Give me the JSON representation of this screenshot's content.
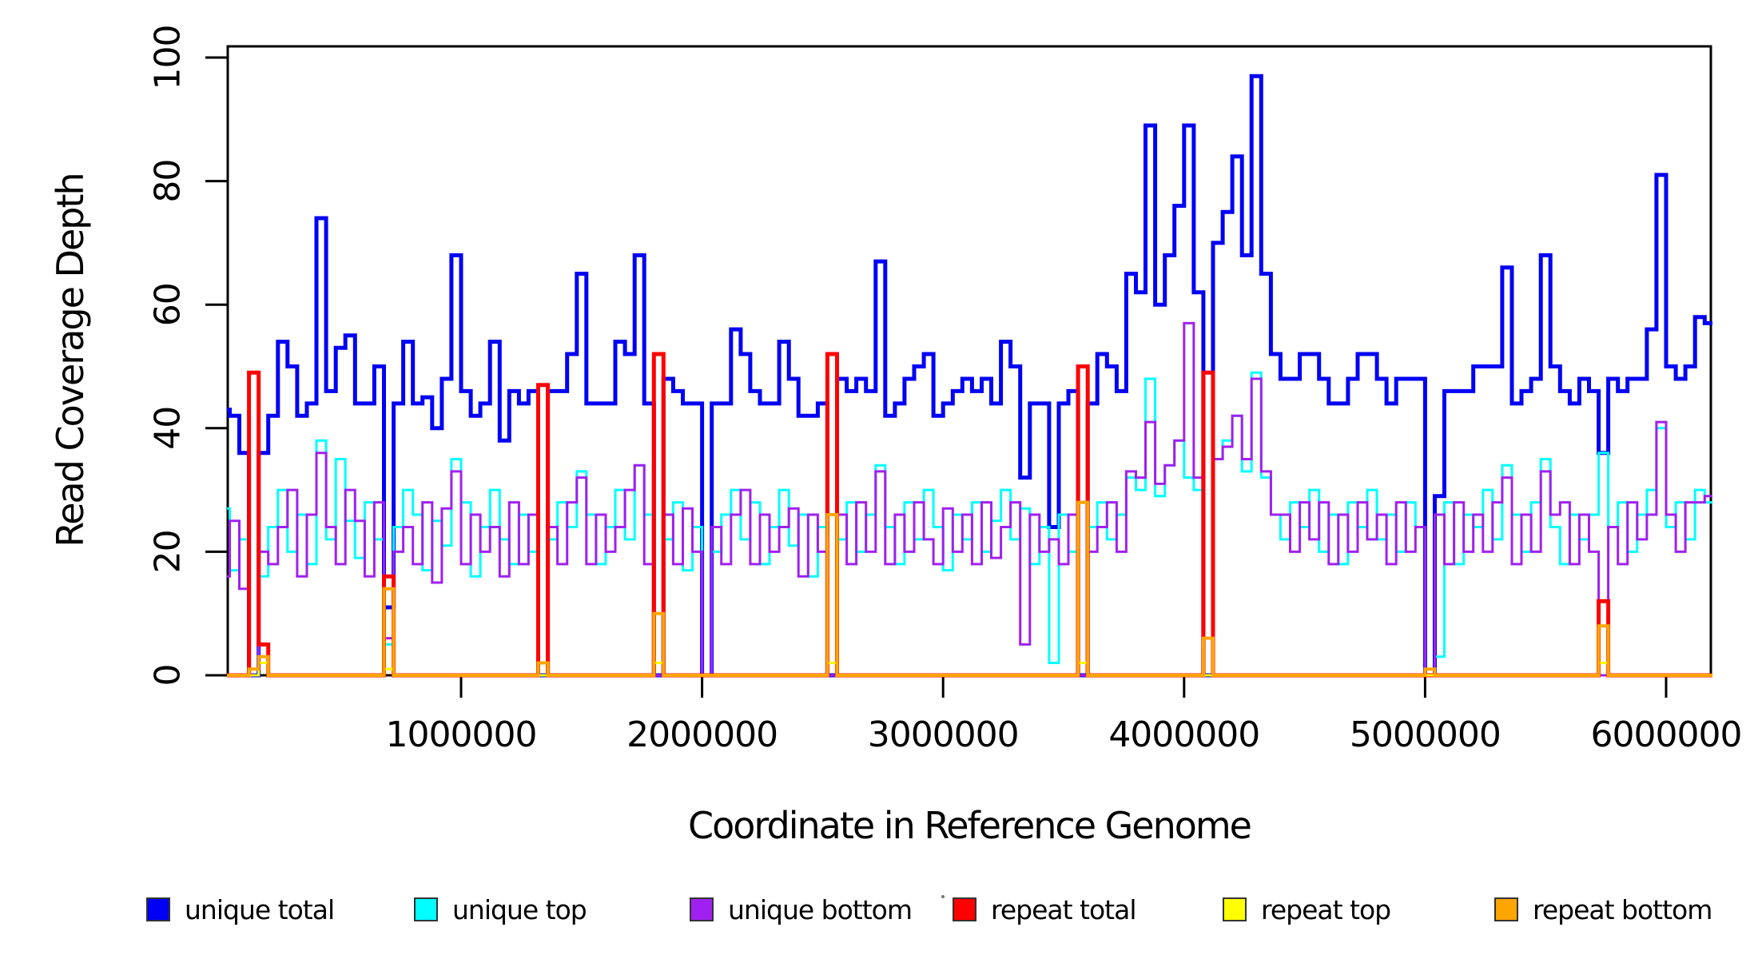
{
  "colors": {
    "unique_total": "#0000F5",
    "unique_top": "#00FFFF",
    "unique_bottom": "#A020F0",
    "repeat_total": "#FF0000",
    "repeat_top": "#FFFF00",
    "repeat_bottom": "#FFA500",
    "axis": "#000000"
  },
  "labels": {
    "xlab": "Coordinate in Reference Genome",
    "ylab": "Read Coverage Depth"
  },
  "legend": {
    "items": [
      {
        "label": "unique total",
        "color_key": "unique_total"
      },
      {
        "label": "unique top",
        "color_key": "unique_top"
      },
      {
        "label": "unique bottom",
        "color_key": "unique_bottom"
      },
      {
        "label": "repeat total",
        "color_key": "repeat_total"
      },
      {
        "label": "repeat top",
        "color_key": "repeat_top"
      },
      {
        "label": "repeat bottom",
        "color_key": "repeat_bottom"
      }
    ]
  },
  "chart_data": {
    "type": "line",
    "step": true,
    "title": "",
    "xlabel": "Coordinate in Reference Genome",
    "ylabel": "Read Coverage Depth",
    "xlim": [
      0,
      6200000
    ],
    "ylim": [
      0,
      100
    ],
    "grid": false,
    "legend_position": "bottom",
    "x_ticks": [
      1000000,
      2000000,
      3000000,
      4000000,
      5000000,
      6000000
    ],
    "x_tick_labels": [
      "1000000",
      "2000000",
      "3000000",
      "4000000",
      "5000000",
      "6000000"
    ],
    "y_ticks": [
      0,
      20,
      40,
      60,
      80,
      100
    ],
    "y_tick_labels": [
      "0",
      "20",
      "40",
      "60",
      "80",
      "100"
    ],
    "bin_size": 40000,
    "x_start": 0,
    "series": [
      {
        "name": "unique total",
        "color_key": "unique_total",
        "line_width": 5,
        "values": [
          43,
          42,
          36,
          0,
          36,
          42,
          54,
          50,
          42,
          44,
          74,
          46,
          53,
          55,
          44,
          44,
          50,
          11,
          44,
          54,
          44,
          45,
          40,
          48,
          68,
          46,
          42,
          44,
          54,
          38,
          46,
          44,
          46,
          0,
          46,
          46,
          52,
          65,
          44,
          44,
          44,
          54,
          52,
          68,
          44,
          0,
          48,
          46,
          44,
          44,
          0,
          44,
          44,
          56,
          52,
          46,
          44,
          44,
          54,
          48,
          42,
          42,
          44,
          0,
          48,
          46,
          48,
          46,
          67,
          42,
          44,
          48,
          50,
          52,
          42,
          44,
          46,
          48,
          46,
          48,
          44,
          54,
          50,
          32,
          44,
          44,
          24,
          44,
          46,
          0,
          44,
          52,
          50,
          46,
          65,
          62,
          89,
          60,
          68,
          76,
          89,
          62,
          0,
          70,
          75,
          84,
          68,
          97,
          65,
          52,
          48,
          48,
          52,
          52,
          48,
          44,
          44,
          48,
          52,
          52,
          48,
          44,
          48,
          48,
          48,
          0,
          29,
          46,
          46,
          46,
          50,
          50,
          50,
          66,
          44,
          46,
          48,
          68,
          50,
          46,
          44,
          48,
          46,
          36,
          48,
          46,
          48,
          48,
          56,
          81,
          50,
          48,
          50,
          58,
          57
        ]
      },
      {
        "name": "unique top",
        "color_key": "unique_top",
        "line_width": 3,
        "values": [
          27,
          17,
          22,
          0,
          16,
          24,
          30,
          20,
          26,
          18,
          38,
          22,
          35,
          25,
          19,
          28,
          22,
          5,
          24,
          30,
          26,
          17,
          25,
          21,
          35,
          28,
          16,
          24,
          30,
          22,
          18,
          26,
          20,
          0,
          22,
          28,
          24,
          33,
          26,
          18,
          24,
          30,
          22,
          34,
          26,
          0,
          22,
          28,
          17,
          24,
          0,
          20,
          26,
          30,
          22,
          28,
          18,
          24,
          30,
          21,
          26,
          16,
          24,
          0,
          22,
          28,
          20,
          26,
          34,
          24,
          18,
          28,
          22,
          30,
          24,
          17,
          26,
          22,
          28,
          20,
          25,
          30,
          22,
          27,
          18,
          24,
          2,
          26,
          20,
          0,
          24,
          28,
          22,
          26,
          32,
          30,
          48,
          29,
          34,
          38,
          32,
          30,
          0,
          35,
          38,
          42,
          33,
          49,
          32,
          26,
          22,
          28,
          24,
          30,
          20,
          26,
          18,
          28,
          24,
          30,
          22,
          26,
          20,
          28,
          24,
          0,
          3,
          28,
          18,
          26,
          24,
          30,
          22,
          34,
          26,
          20,
          28,
          35,
          24,
          18,
          26,
          22,
          26,
          36,
          24,
          28,
          20,
          26,
          30,
          40,
          24,
          28,
          22,
          30,
          28
        ]
      },
      {
        "name": "unique bottom",
        "color_key": "unique_bottom",
        "line_width": 3,
        "values": [
          16,
          25,
          14,
          0,
          20,
          18,
          24,
          30,
          16,
          26,
          36,
          24,
          18,
          30,
          25,
          16,
          28,
          6,
          20,
          24,
          18,
          28,
          15,
          27,
          33,
          18,
          26,
          20,
          24,
          16,
          28,
          18,
          26,
          0,
          24,
          18,
          28,
          32,
          18,
          26,
          20,
          24,
          30,
          34,
          18,
          0,
          26,
          18,
          27,
          20,
          0,
          24,
          18,
          26,
          30,
          18,
          26,
          20,
          24,
          27,
          16,
          26,
          20,
          0,
          26,
          18,
          28,
          20,
          33,
          18,
          26,
          20,
          28,
          22,
          18,
          27,
          20,
          26,
          18,
          28,
          19,
          24,
          28,
          5,
          26,
          20,
          22,
          18,
          26,
          0,
          20,
          24,
          28,
          20,
          33,
          32,
          41,
          31,
          34,
          38,
          57,
          32,
          0,
          35,
          37,
          42,
          35,
          48,
          33,
          26,
          26,
          20,
          28,
          22,
          28,
          18,
          26,
          20,
          28,
          22,
          26,
          18,
          28,
          20,
          24,
          0,
          26,
          18,
          28,
          20,
          26,
          20,
          28,
          32,
          18,
          26,
          20,
          33,
          26,
          28,
          18,
          26,
          20,
          0,
          24,
          18,
          28,
          22,
          26,
          41,
          26,
          20,
          28,
          28,
          29
        ]
      },
      {
        "name": "repeat total",
        "color_key": "repeat_total",
        "line_width": 5,
        "values": [
          0,
          0,
          0,
          49,
          5,
          0,
          0,
          0,
          0,
          0,
          0,
          0,
          0,
          0,
          0,
          0,
          0,
          16,
          0,
          0,
          0,
          0,
          0,
          0,
          0,
          0,
          0,
          0,
          0,
          0,
          0,
          0,
          0,
          47,
          0,
          0,
          0,
          0,
          0,
          0,
          0,
          0,
          0,
          0,
          0,
          52,
          0,
          0,
          0,
          0,
          0,
          0,
          0,
          0,
          0,
          0,
          0,
          0,
          0,
          0,
          0,
          0,
          0,
          52,
          0,
          0,
          0,
          0,
          0,
          0,
          0,
          0,
          0,
          0,
          0,
          0,
          0,
          0,
          0,
          0,
          0,
          0,
          0,
          0,
          0,
          0,
          0,
          0,
          0,
          50,
          0,
          0,
          0,
          0,
          0,
          0,
          0,
          0,
          0,
          0,
          0,
          0,
          49,
          0,
          0,
          0,
          0,
          0,
          0,
          0,
          0,
          0,
          0,
          0,
          0,
          0,
          0,
          0,
          0,
          0,
          0,
          0,
          0,
          0,
          0,
          0,
          0,
          0,
          0,
          0,
          0,
          0,
          0,
          0,
          0,
          0,
          0,
          0,
          0,
          0,
          0,
          0,
          0,
          12,
          0,
          0,
          0,
          0,
          0,
          0,
          0,
          0,
          0,
          0,
          0
        ]
      },
      {
        "name": "repeat top",
        "color_key": "repeat_top",
        "line_width": 3,
        "values": [
          0,
          0,
          0,
          0,
          2,
          0,
          0,
          0,
          0,
          0,
          0,
          0,
          0,
          0,
          0,
          0,
          0,
          1,
          0,
          0,
          0,
          0,
          0,
          0,
          0,
          0,
          0,
          0,
          0,
          0,
          0,
          0,
          0,
          0,
          0,
          0,
          0,
          0,
          0,
          0,
          0,
          0,
          0,
          0,
          0,
          2,
          0,
          0,
          0,
          0,
          0,
          0,
          0,
          0,
          0,
          0,
          0,
          0,
          0,
          0,
          0,
          0,
          0,
          2,
          0,
          0,
          0,
          0,
          0,
          0,
          0,
          0,
          0,
          0,
          0,
          0,
          0,
          0,
          0,
          0,
          0,
          0,
          0,
          0,
          0,
          0,
          0,
          0,
          0,
          2,
          0,
          0,
          0,
          0,
          0,
          0,
          0,
          0,
          0,
          0,
          0,
          0,
          0,
          0,
          0,
          0,
          0,
          0,
          0,
          0,
          0,
          0,
          0,
          0,
          0,
          0,
          0,
          0,
          0,
          0,
          0,
          0,
          0,
          0,
          0,
          0,
          0,
          0,
          0,
          0,
          0,
          0,
          0,
          0,
          0,
          0,
          0,
          0,
          0,
          0,
          0,
          0,
          0,
          2,
          0,
          0,
          0,
          0,
          0,
          0,
          0,
          0,
          0,
          0,
          0
        ]
      },
      {
        "name": "repeat bottom",
        "color_key": "repeat_bottom",
        "line_width": 4,
        "values": [
          0,
          0,
          0,
          1,
          3,
          0,
          0,
          0,
          0,
          0,
          0,
          0,
          0,
          0,
          0,
          0,
          0,
          14,
          0,
          0,
          0,
          0,
          0,
          0,
          0,
          0,
          0,
          0,
          0,
          0,
          0,
          0,
          0,
          2,
          0,
          0,
          0,
          0,
          0,
          0,
          0,
          0,
          0,
          0,
          0,
          10,
          0,
          0,
          0,
          0,
          0,
          0,
          0,
          0,
          0,
          0,
          0,
          0,
          0,
          0,
          0,
          0,
          0,
          26,
          0,
          0,
          0,
          0,
          0,
          0,
          0,
          0,
          0,
          0,
          0,
          0,
          0,
          0,
          0,
          0,
          0,
          0,
          0,
          0,
          0,
          0,
          0,
          0,
          0,
          28,
          0,
          0,
          0,
          0,
          0,
          0,
          0,
          0,
          0,
          0,
          0,
          0,
          6,
          0,
          0,
          0,
          0,
          0,
          0,
          0,
          0,
          0,
          0,
          0,
          0,
          0,
          0,
          0,
          0,
          0,
          0,
          0,
          0,
          0,
          0,
          1,
          0,
          0,
          0,
          0,
          0,
          0,
          0,
          0,
          0,
          0,
          0,
          0,
          0,
          0,
          0,
          0,
          0,
          8,
          0,
          0,
          0,
          0,
          0,
          0,
          0,
          0,
          0,
          0,
          0
        ]
      }
    ]
  }
}
